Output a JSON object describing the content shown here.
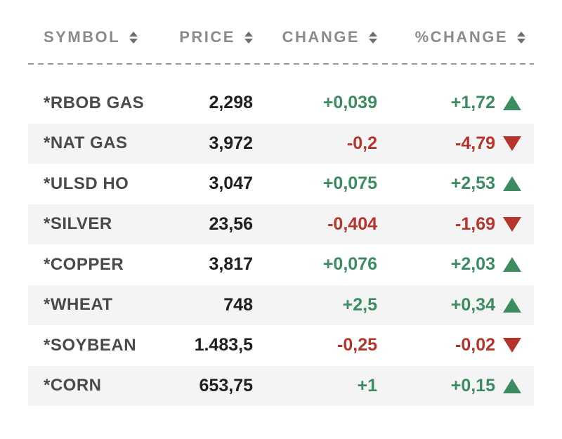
{
  "table": {
    "columns": [
      {
        "label": "SYMBOL"
      },
      {
        "label": "PRICE"
      },
      {
        "label": "CHANGE"
      },
      {
        "label": "%CHANGE"
      }
    ],
    "rows": [
      {
        "symbol": "*RBOB GAS",
        "price": "2,298",
        "change": "+0,039",
        "pct_change": "+1,72",
        "direction": "up"
      },
      {
        "symbol": "*NAT GAS",
        "price": "3,972",
        "change": "-0,2",
        "pct_change": "-4,79",
        "direction": "down"
      },
      {
        "symbol": "*ULSD HO",
        "price": "3,047",
        "change": "+0,075",
        "pct_change": "+2,53",
        "direction": "up"
      },
      {
        "symbol": "*SILVER",
        "price": "23,56",
        "change": "-0,404",
        "pct_change": "-1,69",
        "direction": "down"
      },
      {
        "symbol": "*COPPER",
        "price": "3,817",
        "change": "+0,076",
        "pct_change": "+2,03",
        "direction": "up"
      },
      {
        "symbol": "*WHEAT",
        "price": "748",
        "change": "+2,5",
        "pct_change": "+0,34",
        "direction": "up"
      },
      {
        "symbol": "*SOYBEAN",
        "price": "1.483,5",
        "change": "-0,25",
        "pct_change": "-0,02",
        "direction": "down"
      },
      {
        "symbol": "*CORN",
        "price": "653,75",
        "change": "+1",
        "pct_change": "+0,15",
        "direction": "up"
      }
    ]
  },
  "colors": {
    "positive": "#3d8b61",
    "negative": "#b5342b",
    "header_text": "#8b8b8b",
    "symbol_text": "#4a4a4a",
    "price_text": "#1f1f1f",
    "row_alt_bg": "#f4f4f4",
    "divider": "#9b9b9b",
    "sort_icon": "#6e6e6e"
  }
}
